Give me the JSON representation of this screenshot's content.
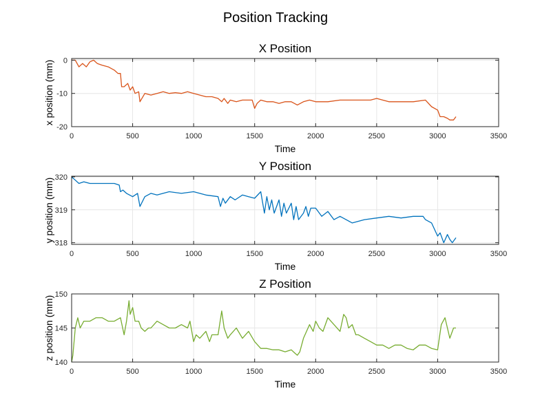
{
  "figure": {
    "title": "Position Tracking"
  },
  "chart_data": [
    {
      "type": "line",
      "title": "X Position",
      "xlabel": "Time",
      "ylabel": "x position (mm)",
      "xlim": [
        0,
        3500
      ],
      "ylim": [
        -20,
        0.5
      ],
      "xticks": [
        "0",
        "500",
        "1000",
        "1500",
        "2000",
        "2500",
        "3000",
        "3500"
      ],
      "yticks": [
        "-20",
        "-10",
        "0"
      ],
      "grid": true,
      "color": "#D95319",
      "x": [
        0,
        30,
        60,
        90,
        120,
        150,
        180,
        210,
        250,
        300,
        350,
        380,
        400,
        410,
        430,
        460,
        480,
        500,
        520,
        550,
        560,
        600,
        650,
        700,
        750,
        800,
        850,
        900,
        950,
        1000,
        1050,
        1100,
        1150,
        1200,
        1230,
        1250,
        1280,
        1300,
        1350,
        1400,
        1450,
        1480,
        1500,
        1520,
        1550,
        1600,
        1650,
        1700,
        1750,
        1800,
        1850,
        1900,
        1950,
        2000,
        2100,
        2200,
        2300,
        2400,
        2450,
        2500,
        2550,
        2600,
        2700,
        2800,
        2900,
        2950,
        3000,
        3020,
        3050,
        3080,
        3100,
        3130,
        3150
      ],
      "values": [
        0,
        0,
        -2,
        -1,
        -2,
        -0.5,
        0,
        -1,
        -1.5,
        -2,
        -3,
        -4,
        -4,
        -8,
        -8,
        -7,
        -9,
        -8,
        -10,
        -9.5,
        -12.5,
        -10,
        -10.5,
        -10,
        -9.5,
        -10,
        -9.8,
        -10,
        -9.5,
        -10,
        -10.5,
        -11,
        -11,
        -11.5,
        -12.5,
        -11.5,
        -13,
        -12,
        -12.5,
        -12,
        -12,
        -12,
        -14.5,
        -13,
        -12,
        -12.5,
        -12.5,
        -13,
        -12.5,
        -12.5,
        -13.5,
        -12.5,
        -12,
        -12.5,
        -12.5,
        -12,
        -12,
        -12,
        -12,
        -11.5,
        -12,
        -12.5,
        -12.5,
        -12.5,
        -12,
        -14,
        -15,
        -17,
        -17,
        -17.5,
        -18,
        -18,
        -17
      ]
    },
    {
      "type": "line",
      "title": "Y Position",
      "xlabel": "Time",
      "ylabel": "y position (mm)",
      "xlim": [
        0,
        3500
      ],
      "ylim": [
        317.95,
        320.02
      ],
      "xticks": [
        "0",
        "500",
        "1000",
        "1500",
        "2000",
        "2500",
        "3000",
        "3500"
      ],
      "yticks": [
        "318",
        "319",
        "320"
      ],
      "grid": true,
      "color": "#0072BD",
      "x": [
        0,
        30,
        60,
        100,
        150,
        200,
        250,
        300,
        350,
        390,
        400,
        420,
        450,
        500,
        540,
        560,
        600,
        650,
        700,
        800,
        900,
        1000,
        1100,
        1200,
        1220,
        1240,
        1260,
        1300,
        1340,
        1360,
        1400,
        1450,
        1500,
        1550,
        1580,
        1600,
        1620,
        1640,
        1660,
        1700,
        1720,
        1740,
        1760,
        1800,
        1820,
        1840,
        1860,
        1900,
        1920,
        1940,
        1960,
        2000,
        2050,
        2100,
        2150,
        2200,
        2300,
        2400,
        2500,
        2600,
        2700,
        2800,
        2880,
        2900,
        2950,
        3000,
        3020,
        3050,
        3080,
        3100,
        3120,
        3150
      ],
      "values": [
        320,
        319.9,
        319.8,
        319.85,
        319.8,
        319.8,
        319.8,
        319.8,
        319.8,
        319.75,
        319.55,
        319.6,
        319.5,
        319.4,
        319.5,
        319.1,
        319.4,
        319.5,
        319.45,
        319.55,
        319.5,
        319.55,
        319.45,
        319.4,
        319.1,
        319.35,
        319.2,
        319.4,
        319.3,
        319.35,
        319.45,
        319.4,
        319.35,
        319.55,
        318.9,
        319.4,
        319,
        319.3,
        318.9,
        319.3,
        318.8,
        319.2,
        318.9,
        319.2,
        318.7,
        319.1,
        318.7,
        318.9,
        319.1,
        318.8,
        319.05,
        319.05,
        318.8,
        318.95,
        318.7,
        318.8,
        318.6,
        318.7,
        318.75,
        318.8,
        318.75,
        318.8,
        318.8,
        318.7,
        318.6,
        318.2,
        318.3,
        318,
        318.25,
        318.1,
        318.0,
        318.15
      ]
    },
    {
      "type": "line",
      "title": "Z Position",
      "xlabel": "Time",
      "ylabel": "z position (mm)",
      "xlim": [
        0,
        3500
      ],
      "ylim": [
        140,
        150
      ],
      "xticks": [
        "0",
        "500",
        "1000",
        "1500",
        "2000",
        "2500",
        "3000",
        "3500"
      ],
      "yticks": [
        "140",
        "145",
        "150"
      ],
      "grid": true,
      "color": "#77AC30",
      "x": [
        0,
        10,
        30,
        50,
        70,
        100,
        150,
        200,
        250,
        300,
        350,
        400,
        430,
        450,
        470,
        480,
        500,
        520,
        550,
        570,
        600,
        630,
        650,
        700,
        750,
        800,
        850,
        900,
        950,
        970,
        1000,
        1020,
        1050,
        1100,
        1130,
        1150,
        1200,
        1230,
        1250,
        1280,
        1300,
        1350,
        1400,
        1450,
        1500,
        1550,
        1600,
        1650,
        1700,
        1750,
        1800,
        1830,
        1850,
        1870,
        1900,
        1950,
        1980,
        2000,
        2030,
        2060,
        2100,
        2150,
        2200,
        2230,
        2250,
        2270,
        2300,
        2330,
        2350,
        2400,
        2450,
        2500,
        2550,
        2600,
        2650,
        2700,
        2750,
        2800,
        2850,
        2900,
        2950,
        3000,
        3030,
        3060,
        3080,
        3100,
        3130,
        3150
      ],
      "values": [
        140,
        141,
        145,
        146.5,
        145,
        146,
        146,
        146.5,
        146.5,
        146,
        146,
        146.5,
        144,
        146,
        149,
        147,
        148,
        146,
        146,
        145,
        144.5,
        145,
        145,
        146,
        145.5,
        145,
        145,
        145.5,
        145,
        146,
        143,
        144,
        143.5,
        144.5,
        143,
        144,
        144,
        147.5,
        145,
        143.5,
        144,
        145,
        143.5,
        144.5,
        143,
        142,
        142,
        141.8,
        141.8,
        141.5,
        141.8,
        141.3,
        141,
        141.5,
        143.5,
        145.5,
        144.5,
        146,
        145,
        144.5,
        146.5,
        145.5,
        144.5,
        147,
        146.5,
        145,
        145.5,
        144,
        144,
        143.5,
        143,
        142.5,
        142.5,
        142,
        142.5,
        142.5,
        142,
        141.8,
        142.5,
        142.5,
        142,
        141.8,
        145.5,
        146.5,
        145,
        143.5,
        145,
        145
      ]
    }
  ]
}
